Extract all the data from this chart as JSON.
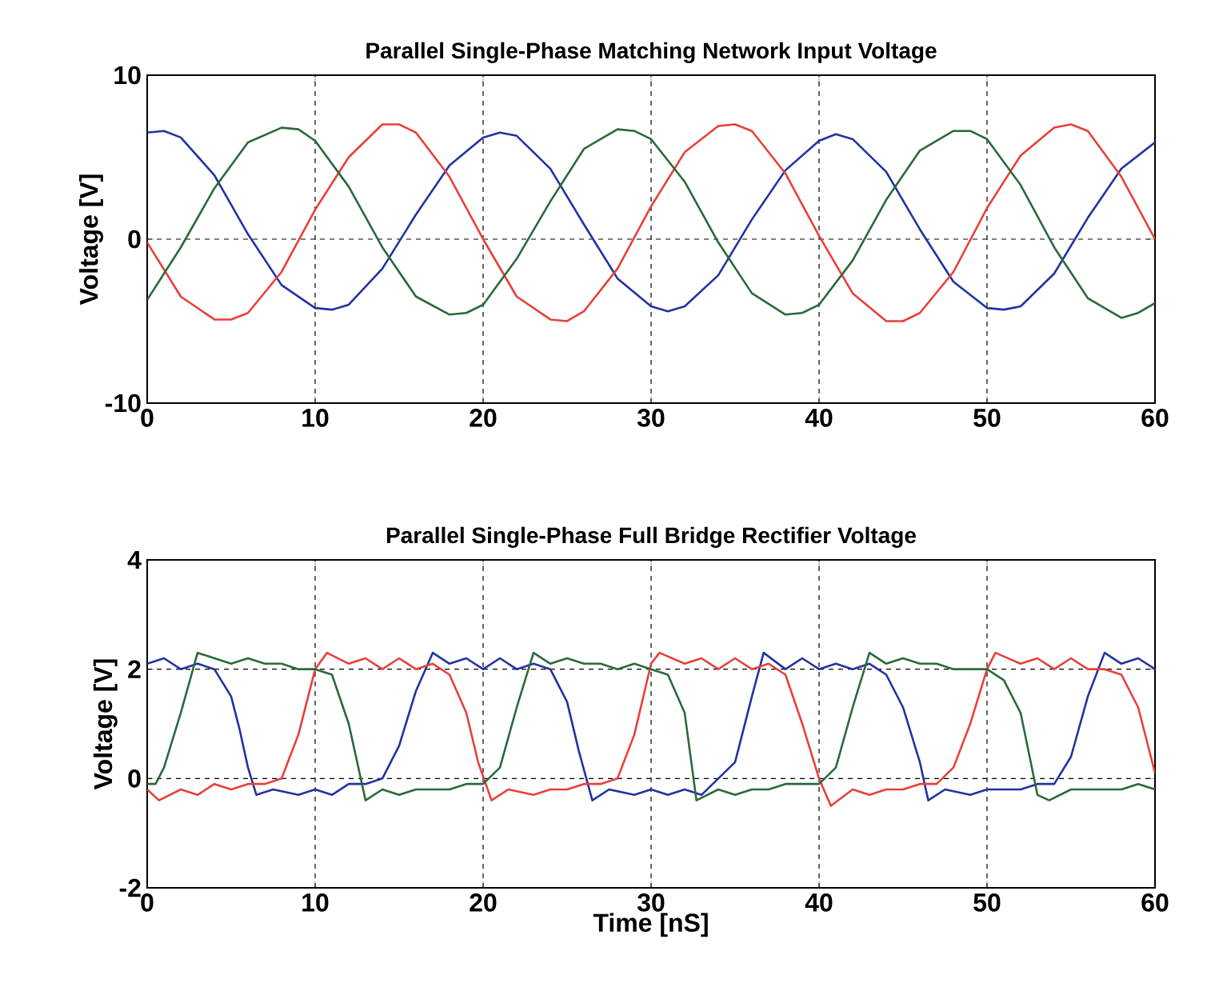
{
  "chart_data": [
    {
      "type": "line",
      "title": "Parallel Single-Phase Matching Network Input Voltage",
      "ylabel": "Voltage [V]",
      "xlim": [
        0,
        60
      ],
      "ylim": [
        -10,
        10
      ],
      "xticks": [
        0,
        10,
        20,
        30,
        40,
        50,
        60
      ],
      "yticks": [
        -10,
        0,
        10
      ],
      "grid": true,
      "series": [
        {
          "color": "#2233a0",
          "x": [
            0,
            1,
            2,
            4,
            6,
            8,
            10,
            11,
            12,
            14,
            16,
            18,
            20,
            21,
            22,
            24,
            26,
            28,
            30,
            31,
            32,
            34,
            36,
            38,
            40,
            41,
            42,
            44,
            46,
            48,
            50,
            51,
            52,
            54,
            56,
            58,
            60
          ],
          "values": [
            6.5,
            6.6,
            6.2,
            3.9,
            0.3,
            -2.8,
            -4.2,
            -4.3,
            -4.0,
            -1.8,
            1.5,
            4.5,
            6.2,
            6.5,
            6.3,
            4.3,
            0.9,
            -2.4,
            -4.1,
            -4.4,
            -4.1,
            -2.2,
            1.2,
            4.2,
            6.0,
            6.4,
            6.1,
            4.1,
            0.6,
            -2.6,
            -4.2,
            -4.3,
            -4.1,
            -2.1,
            1.3,
            4.3,
            5.9
          ]
        },
        {
          "color": "#e8403a",
          "x": [
            0,
            2,
            4,
            5,
            6,
            8,
            10,
            12,
            14,
            15,
            16,
            18,
            20,
            22,
            24,
            25,
            26,
            28,
            30,
            32,
            34,
            35,
            36,
            38,
            40,
            42,
            44,
            45,
            46,
            48,
            50,
            52,
            54,
            55,
            56,
            58,
            60
          ],
          "values": [
            -0.2,
            -3.5,
            -4.9,
            -4.9,
            -4.5,
            -2.0,
            1.8,
            5.0,
            7.0,
            7.0,
            6.5,
            3.8,
            0.0,
            -3.5,
            -4.9,
            -5.0,
            -4.4,
            -1.8,
            2.0,
            5.3,
            6.9,
            7.0,
            6.6,
            4.0,
            0.2,
            -3.3,
            -5.0,
            -5.0,
            -4.5,
            -2.0,
            1.9,
            5.1,
            6.8,
            7.0,
            6.6,
            3.8,
            0.0
          ]
        },
        {
          "color": "#2a6a3a",
          "x": [
            0,
            2,
            4,
            6,
            8,
            9,
            10,
            12,
            14,
            16,
            18,
            19,
            20,
            22,
            24,
            26,
            28,
            29,
            30,
            32,
            34,
            36,
            38,
            39,
            40,
            42,
            44,
            46,
            48,
            49,
            50,
            52,
            54,
            56,
            58,
            59,
            60
          ],
          "values": [
            -3.7,
            -0.5,
            3.1,
            5.9,
            6.8,
            6.7,
            6.0,
            3.2,
            -0.5,
            -3.5,
            -4.6,
            -4.5,
            -4.0,
            -1.2,
            2.3,
            5.5,
            6.7,
            6.6,
            6.1,
            3.5,
            -0.2,
            -3.3,
            -4.6,
            -4.5,
            -4.0,
            -1.3,
            2.4,
            5.4,
            6.6,
            6.6,
            6.1,
            3.3,
            -0.5,
            -3.6,
            -4.8,
            -4.5,
            -3.9
          ]
        }
      ]
    },
    {
      "type": "line",
      "title": "Parallel Single-Phase Full Bridge Rectifier Voltage",
      "xlabel": "Time [nS]",
      "ylabel": "Voltage [V]",
      "xlim": [
        0,
        60
      ],
      "ylim": [
        -2,
        4
      ],
      "xticks": [
        0,
        10,
        20,
        30,
        40,
        50,
        60
      ],
      "yticks": [
        -2,
        0,
        2,
        4
      ],
      "grid": true,
      "series": [
        {
          "color": "#2233a0",
          "x": [
            0,
            1,
            2,
            3,
            4,
            5,
            5.5,
            6,
            6.5,
            7.5,
            9,
            10,
            11,
            12,
            13,
            14,
            15,
            16,
            17,
            18,
            19,
            20,
            21,
            22,
            23,
            24,
            25,
            25.7,
            26.5,
            27.5,
            29,
            30,
            31,
            32,
            33,
            34,
            35,
            36,
            36.7,
            38,
            39,
            40,
            41,
            42,
            43,
            44,
            45,
            46,
            46.5,
            47.5,
            49,
            50,
            51,
            52,
            53,
            54,
            55,
            56,
            57,
            58,
            59,
            60
          ],
          "values": [
            2.1,
            2.2,
            2.0,
            2.1,
            2.0,
            1.5,
            0.9,
            0.2,
            -0.3,
            -0.2,
            -0.3,
            -0.2,
            -0.3,
            -0.1,
            -0.1,
            0.0,
            0.6,
            1.6,
            2.3,
            2.1,
            2.2,
            2.0,
            2.2,
            2.0,
            2.1,
            2.0,
            1.4,
            0.5,
            -0.4,
            -0.2,
            -0.3,
            -0.2,
            -0.3,
            -0.2,
            -0.3,
            0.0,
            0.3,
            1.5,
            2.3,
            2.0,
            2.2,
            2.0,
            2.1,
            2.0,
            2.1,
            1.9,
            1.3,
            0.3,
            -0.4,
            -0.2,
            -0.3,
            -0.2,
            -0.2,
            -0.2,
            -0.1,
            -0.1,
            0.4,
            1.5,
            2.3,
            2.1,
            2.2,
            2.0
          ]
        },
        {
          "color": "#e8403a",
          "x": [
            0,
            0.7,
            2,
            3,
            4,
            5,
            6,
            7,
            8,
            9,
            10,
            10.7,
            12,
            13,
            14,
            15,
            16,
            17,
            18,
            19,
            19.7,
            20.5,
            21.5,
            23,
            24,
            25,
            26,
            27,
            28,
            29,
            30,
            30.5,
            32,
            33,
            34,
            35,
            36,
            37,
            38,
            39,
            40,
            40.7,
            42,
            43,
            44,
            45,
            46,
            47,
            48,
            49,
            50,
            50.5,
            52,
            53,
            54,
            55,
            56,
            57,
            58,
            59,
            60
          ],
          "values": [
            -0.2,
            -0.4,
            -0.2,
            -0.3,
            -0.1,
            -0.2,
            -0.1,
            -0.1,
            0.0,
            0.8,
            2.0,
            2.3,
            2.1,
            2.2,
            2.0,
            2.2,
            2.0,
            2.1,
            1.9,
            1.2,
            0.3,
            -0.4,
            -0.2,
            -0.3,
            -0.2,
            -0.2,
            -0.1,
            -0.1,
            0.0,
            0.8,
            2.1,
            2.3,
            2.1,
            2.2,
            2.0,
            2.2,
            2.0,
            2.1,
            1.9,
            1.0,
            0.0,
            -0.5,
            -0.2,
            -0.3,
            -0.2,
            -0.2,
            -0.1,
            -0.1,
            0.2,
            1.0,
            2.0,
            2.3,
            2.1,
            2.2,
            2.0,
            2.2,
            2.0,
            2.0,
            1.9,
            1.3,
            0.1
          ]
        },
        {
          "color": "#2a6a3a",
          "x": [
            0,
            0.5,
            1,
            2,
            3,
            4,
            5,
            6,
            7,
            8,
            9,
            10,
            11,
            12,
            12.5,
            13,
            14,
            15,
            16,
            17,
            18,
            19,
            20,
            21,
            22,
            23,
            24,
            25,
            26,
            27,
            28,
            29,
            30,
            31,
            32,
            32.7,
            34,
            35,
            36,
            37,
            38,
            39,
            40,
            41,
            42,
            43,
            44,
            45,
            46,
            47,
            48,
            49,
            50,
            51,
            52,
            53,
            53.7,
            55,
            56,
            57,
            58,
            59,
            60
          ],
          "values": [
            -0.1,
            -0.1,
            0.2,
            1.2,
            2.3,
            2.2,
            2.1,
            2.2,
            2.1,
            2.1,
            2.0,
            2.0,
            1.9,
            1.0,
            0.3,
            -0.4,
            -0.2,
            -0.3,
            -0.2,
            -0.2,
            -0.2,
            -0.1,
            -0.1,
            0.2,
            1.3,
            2.3,
            2.1,
            2.2,
            2.1,
            2.1,
            2.0,
            2.1,
            2.0,
            1.9,
            1.2,
            -0.4,
            -0.2,
            -0.3,
            -0.2,
            -0.2,
            -0.1,
            -0.1,
            -0.1,
            0.2,
            1.3,
            2.3,
            2.1,
            2.2,
            2.1,
            2.1,
            2.0,
            2.0,
            2.0,
            1.8,
            1.2,
            -0.3,
            -0.4,
            -0.2,
            -0.2,
            -0.2,
            -0.2,
            -0.1,
            -0.2
          ]
        }
      ]
    }
  ]
}
